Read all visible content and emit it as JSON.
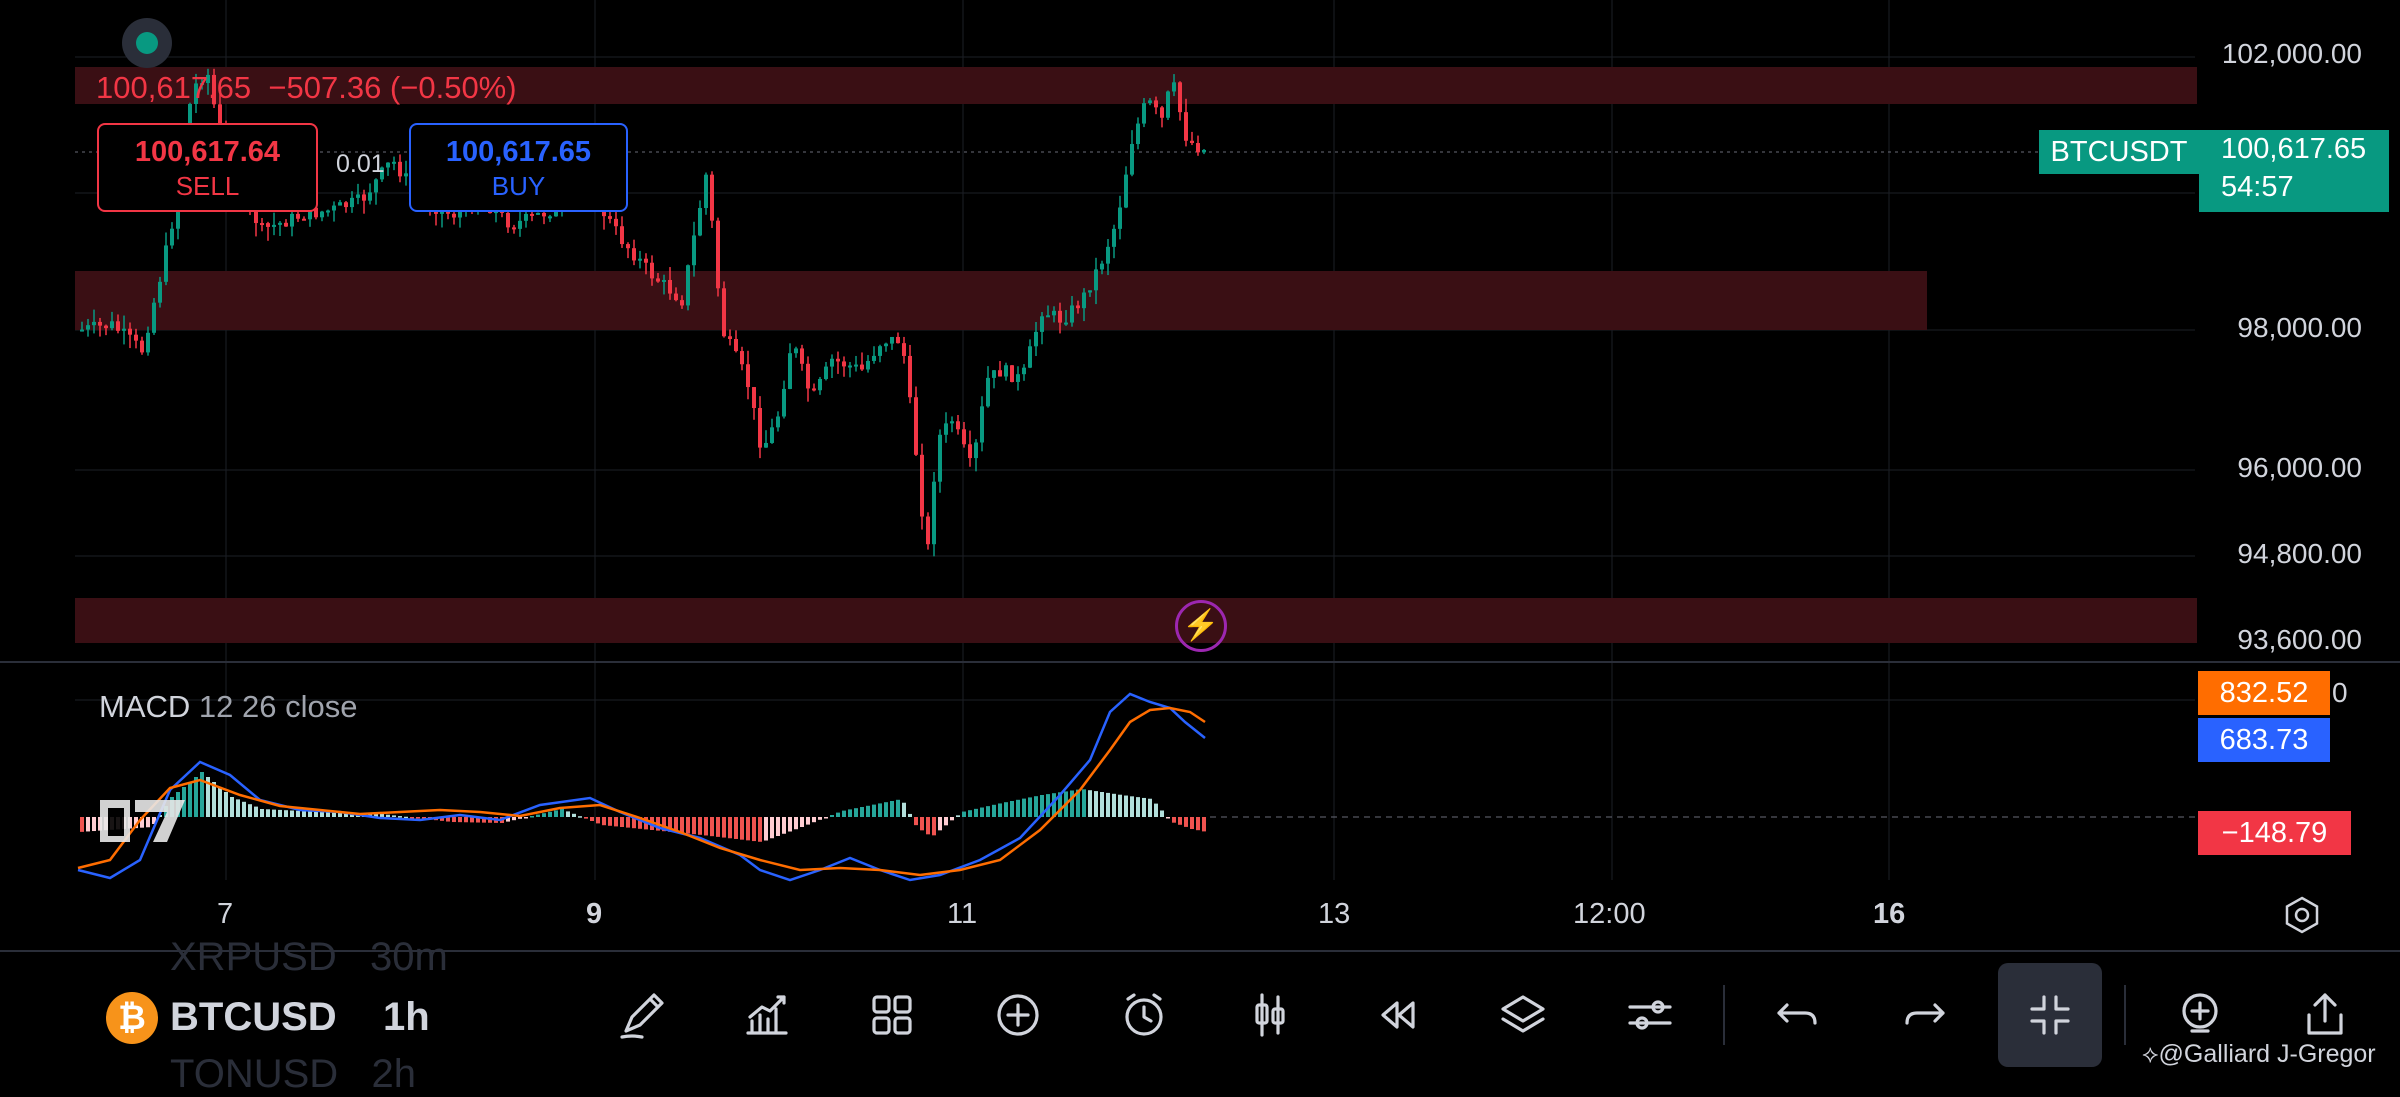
{
  "instrument": {
    "symbol": "BTCUSDT",
    "symbol_short": "BTCUSD",
    "timeframe": "1h",
    "last_price": "100,617.65",
    "change": "−507.36 (−0.50%)",
    "countdown": "54:57",
    "symbol_prev": "XRPUSD",
    "timeframe_prev": "30m",
    "symbol_next": "TONUSD",
    "timeframe_next": "2h"
  },
  "trade": {
    "sell_price": "100,617.64",
    "sell_label": "SELL",
    "buy_price": "100,617.65",
    "buy_label": "BUY",
    "lot": "0.01"
  },
  "price_axis": [
    "102,000.00",
    "98,000.00",
    "96,000.00",
    "94,800.00",
    "93,600.00"
  ],
  "time_axis": [
    {
      "label": "7",
      "bold": false
    },
    {
      "label": "9",
      "bold": true
    },
    {
      "label": "11",
      "bold": false
    },
    {
      "label": "13",
      "bold": false
    },
    {
      "label": "12:00",
      "bold": false
    },
    {
      "label": "16",
      "bold": true
    }
  ],
  "indicator": {
    "name": "MACD",
    "params": "12 26 close",
    "signal_value": "832.52",
    "macd_value": "683.73",
    "hist_value": "−148.79",
    "axis_partial": "0"
  },
  "colors": {
    "up": "#089981",
    "down": "#f23645",
    "zone": "#3a0f14",
    "macd_line": "#2962ff",
    "signal_line": "#ff6d00"
  },
  "toolbar": [
    {
      "name": "drawing-tools-button",
      "icon": "pencil-icon"
    },
    {
      "name": "indicators-button",
      "icon": "chart-indicator-icon"
    },
    {
      "name": "layout-button",
      "icon": "grid-icon"
    },
    {
      "name": "add-button",
      "icon": "plus-circle-icon"
    },
    {
      "name": "alert-button",
      "icon": "alarm-icon"
    },
    {
      "name": "chart-type-button",
      "icon": "candles-icon"
    },
    {
      "name": "replay-button",
      "icon": "rewind-icon"
    },
    {
      "name": "object-tree-button",
      "icon": "layers-icon"
    },
    {
      "name": "settings-button",
      "icon": "sliders-icon"
    },
    {
      "name": "undo-button",
      "icon": "undo-icon"
    },
    {
      "name": "redo-button",
      "icon": "redo-icon"
    },
    {
      "name": "collapse-button",
      "icon": "collapse-icon"
    },
    {
      "name": "zoom-in-button",
      "icon": "zoom-plus-icon"
    },
    {
      "name": "share-button",
      "icon": "share-icon"
    }
  ],
  "credit": "@Galliard J-Gregor"
}
